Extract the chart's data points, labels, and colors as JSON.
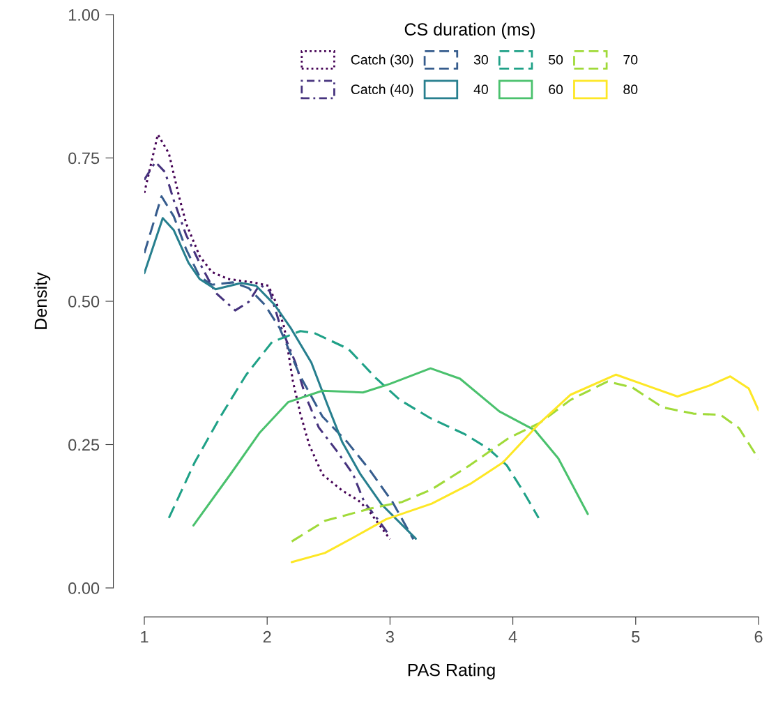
{
  "chart_data": {
    "type": "line",
    "xlabel": "PAS Rating",
    "ylabel": "Density",
    "legend_title": "CS duration (ms)",
    "legend": "top",
    "grid": false,
    "xlim": [
      1,
      6
    ],
    "ylim": [
      0,
      1
    ],
    "xticks": [
      1,
      2,
      3,
      4,
      5,
      6
    ],
    "yticks": [
      {
        "value": 0,
        "label": "0.00"
      },
      {
        "value": 0.25,
        "label": "0.25"
      },
      {
        "value": 0.5,
        "label": "0.50"
      },
      {
        "value": 0.75,
        "label": "0.75"
      },
      {
        "value": 1,
        "label": "1.00"
      }
    ],
    "series": [
      {
        "name": "Catch (30)",
        "color": "#440154",
        "line_style": "dotted",
        "x": [
          1.0,
          1.11,
          1.2,
          1.28,
          1.34,
          1.45,
          1.55,
          1.68,
          1.91,
          2.01,
          2.08,
          2.14,
          2.21,
          2.27,
          2.34,
          2.45,
          2.61,
          2.74,
          2.83,
          3.0
        ],
        "values": [
          0.689,
          0.791,
          0.758,
          0.685,
          0.636,
          0.579,
          0.551,
          0.539,
          0.532,
          0.527,
          0.494,
          0.454,
          0.36,
          0.304,
          0.251,
          0.198,
          0.17,
          0.153,
          0.134,
          0.085
        ]
      },
      {
        "name": "Catch (40)",
        "color": "#46337e",
        "line_style": "dashdot",
        "x": [
          1.0,
          1.09,
          1.17,
          1.24,
          1.34,
          1.45,
          1.58,
          1.74,
          1.85,
          1.94,
          2.02,
          2.1,
          2.23,
          2.31,
          2.42,
          2.57,
          2.7,
          2.79,
          2.91,
          3.0
        ],
        "values": [
          0.712,
          0.743,
          0.725,
          0.676,
          0.616,
          0.567,
          0.515,
          0.484,
          0.499,
          0.529,
          0.518,
          0.462,
          0.393,
          0.336,
          0.28,
          0.238,
          0.198,
          0.15,
          0.117,
          0.09
        ]
      },
      {
        "name": "30",
        "color": "#365c8d",
        "line_style": "dashed",
        "x": [
          1.0,
          1.14,
          1.24,
          1.34,
          1.45,
          1.55,
          1.72,
          1.85,
          1.98,
          2.1,
          2.27,
          2.45,
          2.65,
          2.83,
          3.02,
          3.19
        ],
        "values": [
          0.584,
          0.683,
          0.648,
          0.591,
          0.543,
          0.529,
          0.533,
          0.523,
          0.494,
          0.454,
          0.369,
          0.299,
          0.255,
          0.207,
          0.15,
          0.085
        ]
      },
      {
        "name": "40",
        "color": "#277f8e",
        "line_style": "solid",
        "x": [
          1.0,
          1.15,
          1.24,
          1.36,
          1.45,
          1.58,
          1.79,
          1.91,
          2.06,
          2.19,
          2.36,
          2.49,
          2.61,
          2.76,
          2.93,
          3.21
        ],
        "values": [
          0.549,
          0.645,
          0.624,
          0.567,
          0.539,
          0.521,
          0.532,
          0.527,
          0.494,
          0.454,
          0.393,
          0.32,
          0.255,
          0.198,
          0.146,
          0.086
        ]
      },
      {
        "name": "50",
        "color": "#1fa187",
        "line_style": "dashed",
        "x": [
          1.2,
          1.41,
          1.62,
          1.83,
          2.04,
          2.27,
          2.38,
          2.66,
          2.89,
          3.08,
          3.33,
          3.61,
          3.8,
          3.95,
          4.08,
          4.21
        ],
        "values": [
          0.122,
          0.219,
          0.299,
          0.372,
          0.429,
          0.448,
          0.445,
          0.417,
          0.365,
          0.328,
          0.296,
          0.268,
          0.243,
          0.214,
          0.17,
          0.122
        ]
      },
      {
        "name": "60",
        "color": "#4ac16d",
        "line_style": "solid",
        "x": [
          1.4,
          1.7,
          1.94,
          2.17,
          2.45,
          2.78,
          3.0,
          3.33,
          3.57,
          3.89,
          4.18,
          4.37,
          4.61
        ],
        "values": [
          0.109,
          0.198,
          0.271,
          0.324,
          0.344,
          0.341,
          0.356,
          0.383,
          0.365,
          0.308,
          0.275,
          0.226,
          0.129
        ]
      },
      {
        "name": "70",
        "color": "#a0da39",
        "line_style": "dashed",
        "x": [
          2.2,
          2.47,
          2.85,
          3.1,
          3.34,
          3.65,
          3.97,
          4.22,
          4.47,
          4.77,
          4.97,
          5.22,
          5.47,
          5.69,
          5.84,
          6.0
        ],
        "values": [
          0.081,
          0.117,
          0.139,
          0.15,
          0.172,
          0.214,
          0.262,
          0.288,
          0.328,
          0.36,
          0.35,
          0.315,
          0.304,
          0.302,
          0.279,
          0.225
        ]
      },
      {
        "name": "80",
        "color": "#fde725",
        "line_style": "solid",
        "x": [
          2.2,
          2.47,
          2.72,
          2.97,
          3.34,
          3.65,
          3.92,
          4.22,
          4.47,
          4.84,
          5.09,
          5.34,
          5.6,
          5.77,
          5.92,
          6.0
        ],
        "values": [
          0.045,
          0.061,
          0.09,
          0.12,
          0.147,
          0.181,
          0.219,
          0.288,
          0.337,
          0.372,
          0.353,
          0.334,
          0.353,
          0.369,
          0.348,
          0.31
        ]
      }
    ]
  }
}
